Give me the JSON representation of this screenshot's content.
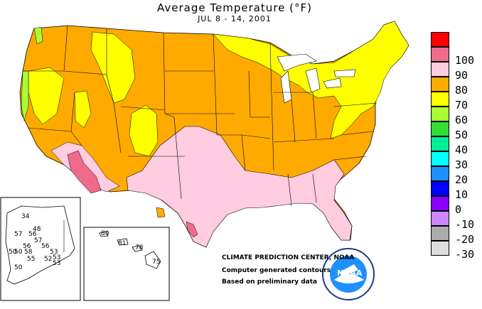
{
  "header": {
    "title": "Average Temperature (°F)",
    "subtitle": "JUL 8 - 14, 2001"
  },
  "legend": {
    "items": [
      {
        "label": "",
        "color": "#ff0000"
      },
      {
        "label": "100",
        "color": "#f06b8a"
      },
      {
        "label": "90",
        "color": "#ffcce0"
      },
      {
        "label": "80",
        "color": "#ffaa00"
      },
      {
        "label": "70",
        "color": "#ffff00"
      },
      {
        "label": "60",
        "color": "#aaff33"
      },
      {
        "label": "50",
        "color": "#33dd33"
      },
      {
        "label": "40",
        "color": "#00ee99"
      },
      {
        "label": "30",
        "color": "#00ffff"
      },
      {
        "label": "20",
        "color": "#1e90ff"
      },
      {
        "label": "10",
        "color": "#0000ff"
      },
      {
        "label": "0",
        "color": "#8800ff"
      },
      {
        "label": "-10",
        "color": "#cc88ff"
      },
      {
        "label": "-20",
        "color": "#aaaaaa"
      },
      {
        "label": "-30",
        "color": "#dddddd"
      }
    ]
  },
  "alaska": {
    "labels": [
      "34",
      "48",
      "57",
      "56",
      "57",
      "56",
      "50",
      "50",
      "56",
      "58",
      "53",
      "53",
      "55",
      "52",
      "53",
      "50"
    ]
  },
  "hawaii": {
    "labels": [
      "80",
      "81",
      "78",
      "75"
    ]
  },
  "credits": {
    "center": "CLIMATE PREDICTION CENTER, NOAA",
    "line1": "Computer generated contours",
    "line2": "Based on preliminary data",
    "logo_text": "NOAA"
  },
  "colors": {
    "orange": "#ffaa00",
    "yellow": "#ffff00",
    "pink": "#ffcce0",
    "rose": "#f06b8a",
    "green": "#aaff33",
    "white": "#ffffff"
  }
}
